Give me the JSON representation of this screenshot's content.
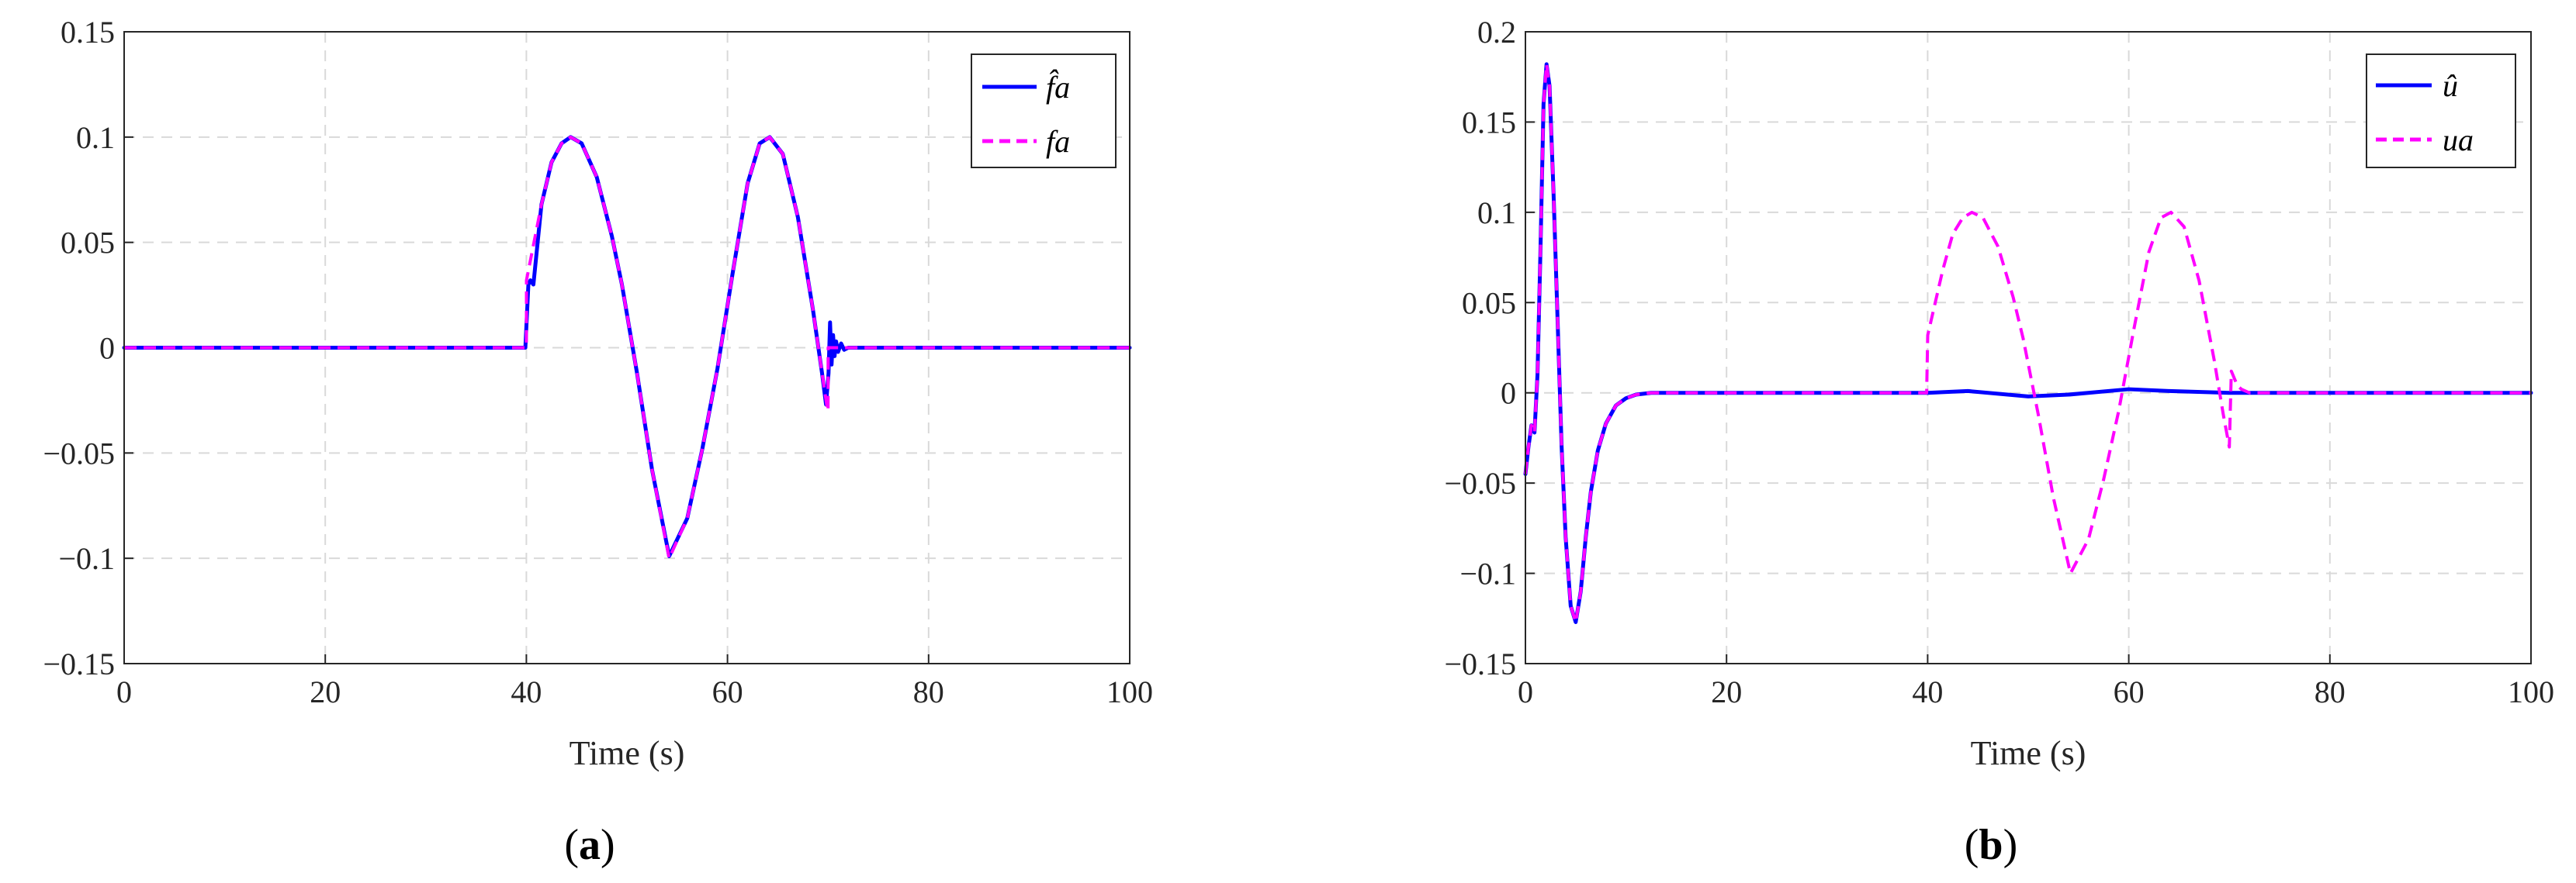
{
  "chart_data": [
    {
      "type": "line",
      "panel_label": "a",
      "xlabel": "Time (s)",
      "ylabel": "",
      "xlim": [
        0,
        100
      ],
      "ylim": [
        -0.15,
        0.15
      ],
      "xticks": [
        0,
        20,
        40,
        60,
        80,
        100
      ],
      "yticks": [
        0.15,
        0.1,
        0.05,
        0,
        -0.05,
        -0.1,
        -0.15
      ],
      "ytick_labels": [
        "0.15",
        "0.1",
        "0.05",
        "0",
        "−0.05",
        "−0.1",
        "−0.15"
      ],
      "grid": true,
      "legend_position": "top-right",
      "series": [
        {
          "name": "f̂a",
          "color": "#0000ff",
          "style": "solid",
          "x": [
            0,
            39.9,
            40.0,
            40.2,
            40.4,
            40.7,
            41.5,
            42.5,
            43.5,
            44.4,
            45.5,
            47,
            48.5,
            49.5,
            51,
            52.5,
            54.2,
            56,
            57.5,
            59,
            60.5,
            62,
            63.2,
            64.2,
            65.5,
            67,
            68.5,
            69.4,
            69.8,
            70.05,
            70.2,
            70.35,
            70.5,
            70.65,
            70.8,
            71,
            71.3,
            71.6,
            72,
            100
          ],
          "y": [
            0,
            0,
            0.01,
            0.03,
            0.032,
            0.03,
            0.068,
            0.088,
            0.097,
            0.1,
            0.097,
            0.081,
            0.053,
            0.03,
            -0.012,
            -0.058,
            -0.099,
            -0.081,
            -0.048,
            -0.01,
            0.035,
            0.078,
            0.097,
            0.1,
            0.092,
            0.062,
            0.018,
            -0.012,
            -0.027,
            -0.012,
            0.012,
            -0.008,
            0.006,
            -0.004,
            0.003,
            -0.002,
            0.002,
            -0.001,
            0,
            0
          ]
        },
        {
          "name": "fa",
          "color": "#ff00ff",
          "style": "dashed",
          "x": [
            0,
            40,
            40.01,
            41.5,
            42.5,
            43.5,
            44.4,
            45.5,
            47,
            48.5,
            49.5,
            51,
            52.5,
            54.2,
            56,
            57.5,
            59,
            60.5,
            62,
            63.2,
            64.2,
            65.5,
            67,
            68.5,
            69.4,
            69.9,
            70,
            70.01,
            100
          ],
          "y": [
            0,
            0,
            0.032,
            0.068,
            0.088,
            0.097,
            0.1,
            0.097,
            0.081,
            0.053,
            0.03,
            -0.012,
            -0.058,
            -0.1,
            -0.081,
            -0.048,
            -0.01,
            0.035,
            0.078,
            0.097,
            0.1,
            0.092,
            0.062,
            0.018,
            -0.012,
            -0.028,
            -0.03,
            0,
            0
          ]
        }
      ]
    },
    {
      "type": "line",
      "panel_label": "b",
      "xlabel": "Time (s)",
      "ylabel": "",
      "xlim": [
        0,
        100
      ],
      "ylim": [
        -0.15,
        0.2
      ],
      "xticks": [
        0,
        20,
        40,
        60,
        80,
        100
      ],
      "yticks": [
        0.2,
        0.15,
        0.1,
        0.05,
        0,
        -0.05,
        -0.1,
        -0.15
      ],
      "ytick_labels": [
        "0.2",
        "0.15",
        "0.1",
        "0.05",
        "0",
        "−0.05",
        "−0.1",
        "−0.15"
      ],
      "grid": true,
      "legend_position": "top-right",
      "series": [
        {
          "name": "û",
          "color": "#0000ff",
          "style": "solid",
          "x": [
            0,
            0.3,
            0.6,
            0.9,
            1.2,
            1.5,
            1.8,
            2.1,
            2.4,
            2.8,
            3.2,
            3.6,
            4.0,
            4.5,
            5.0,
            5.5,
            6.0,
            6.5,
            7.2,
            8.0,
            9.0,
            10.0,
            11.0,
            12.5,
            14,
            16,
            20,
            30,
            40,
            44,
            50,
            54,
            60,
            64,
            70,
            100
          ],
          "y": [
            -0.045,
            -0.03,
            -0.018,
            -0.022,
            0.01,
            0.08,
            0.16,
            0.182,
            0.17,
            0.11,
            0.04,
            -0.03,
            -0.08,
            -0.118,
            -0.127,
            -0.11,
            -0.08,
            -0.055,
            -0.032,
            -0.017,
            -0.007,
            -0.003,
            -0.001,
            0,
            0,
            0,
            0,
            0,
            0,
            0.001,
            -0.002,
            -0.001,
            0.002,
            0.001,
            0,
            0
          ]
        },
        {
          "name": "ua",
          "color": "#ff00ff",
          "style": "dashed",
          "x": [
            0,
            0.3,
            0.6,
            0.9,
            1.2,
            1.5,
            1.8,
            2.1,
            2.4,
            2.8,
            3.2,
            3.6,
            4.0,
            4.5,
            5.0,
            5.5,
            6.0,
            6.5,
            7.2,
            8.0,
            9.0,
            10.0,
            11.0,
            12.5,
            14,
            16,
            20,
            30,
            39.9,
            40.0,
            40.01,
            41.5,
            42.5,
            43.5,
            44.4,
            45.5,
            47,
            48.5,
            49.5,
            51,
            52.5,
            54.2,
            56,
            57.5,
            59,
            60.5,
            62,
            63.2,
            64.2,
            65.5,
            67,
            68.5,
            69.4,
            69.9,
            70.0,
            70.2,
            70.5,
            70.8,
            71.2,
            72,
            100
          ],
          "y": [
            -0.045,
            -0.03,
            -0.018,
            -0.022,
            0.01,
            0.08,
            0.16,
            0.182,
            0.17,
            0.11,
            0.04,
            -0.03,
            -0.08,
            -0.118,
            -0.127,
            -0.11,
            -0.08,
            -0.055,
            -0.032,
            -0.017,
            -0.007,
            -0.003,
            -0.001,
            0,
            0,
            0,
            0,
            0,
            0,
            0.03,
            0.032,
            0.068,
            0.088,
            0.097,
            0.1,
            0.097,
            0.081,
            0.053,
            0.03,
            -0.012,
            -0.058,
            -0.1,
            -0.081,
            -0.048,
            -0.01,
            0.035,
            0.078,
            0.097,
            0.1,
            0.092,
            0.062,
            0.018,
            -0.012,
            -0.027,
            -0.03,
            0.012,
            0.008,
            0.004,
            0.002,
            0,
            0
          ]
        }
      ]
    }
  ]
}
